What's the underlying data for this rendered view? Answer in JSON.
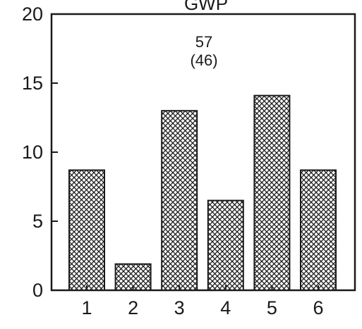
{
  "chart_data": {
    "type": "bar",
    "title": "GWP",
    "annotation_lines": [
      "57",
      "(46)"
    ],
    "categories": [
      "1",
      "2",
      "3",
      "4",
      "5",
      "6"
    ],
    "values": [
      8.7,
      1.9,
      13,
      6.5,
      14.1,
      8.7
    ],
    "ylim": [
      0,
      20
    ],
    "yticks": [
      0,
      5,
      10,
      15,
      20
    ],
    "xlabel": "",
    "ylabel": "",
    "grid": false,
    "bar_pattern": "crosshatch"
  }
}
